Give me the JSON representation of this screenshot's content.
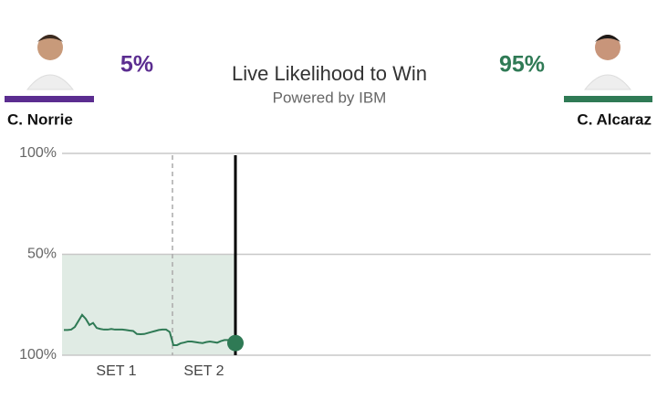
{
  "players": [
    {
      "name": "C. Norrie",
      "likelihood": "5%",
      "color": "#5b2d90"
    },
    {
      "name": "C. Alcaraz",
      "likelihood": "95%",
      "color": "#2f7a55"
    }
  ],
  "chart_data": {
    "type": "line",
    "title": "Live Likelihood to Win",
    "subtitle": "Powered by IBM",
    "annotations": [
      "SET 1",
      "SET 2"
    ],
    "values": [
      12.5,
      12.5,
      12.7,
      14,
      17,
      20,
      18,
      15,
      16,
      13.5,
      13,
      12.7,
      12.7,
      13,
      12.7,
      12.7,
      12.7,
      12.5,
      12.2,
      12,
      10.5,
      10.4,
      10.5,
      11,
      11.5,
      12,
      12.5,
      12.7,
      12.7,
      11.5,
      5,
      5,
      5.9,
      6.3,
      6.8,
      6.8,
      6.5,
      6.2,
      6,
      6.5,
      6.8,
      6.5,
      6.2,
      7,
      7.5,
      7.5,
      7,
      6
    ],
    "color": "#2f7a55",
    "ylim": [
      0,
      100
    ],
    "yticks": [
      {
        "value": 0,
        "label": "100%"
      },
      {
        "value": 50,
        "label": "50%"
      },
      {
        "value": 100,
        "label": "100%"
      }
    ],
    "grid": true
  }
}
